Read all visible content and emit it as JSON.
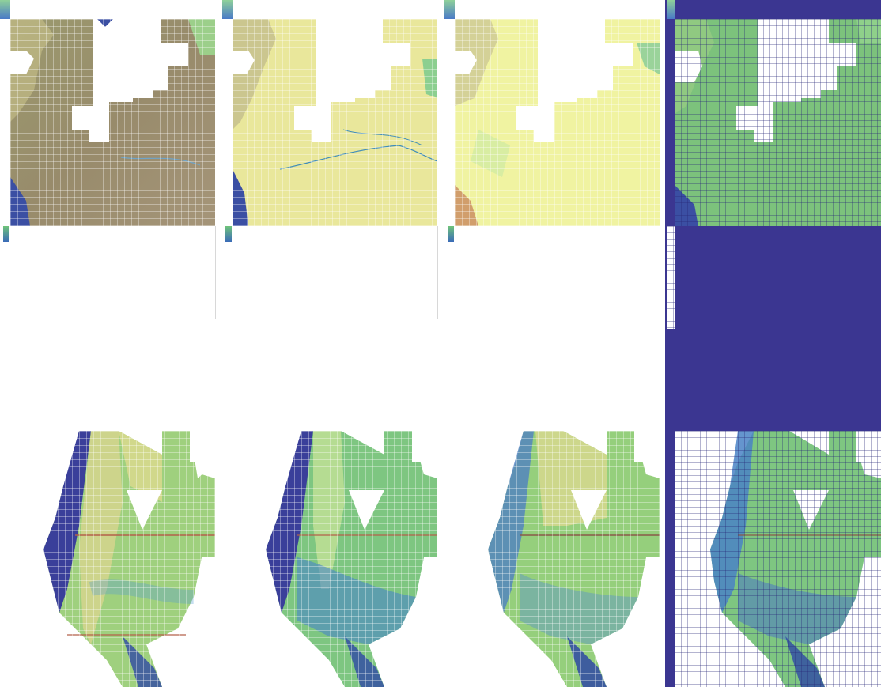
{
  "colors": {
    "navy": "#3b3691",
    "green": "#6dc07a",
    "yellow": "#eef29c",
    "olive": "#9a8e6a",
    "blue": "#3a6bb8",
    "white": "#ffffff"
  },
  "panels": [
    {
      "row": 1,
      "col": 1,
      "palette": "olive"
    },
    {
      "row": 1,
      "col": 2,
      "palette": "pale-yellow"
    },
    {
      "row": 1,
      "col": 3,
      "palette": "yellow"
    },
    {
      "row": 1,
      "col": 4,
      "palette": "green-grid"
    },
    {
      "row": 2,
      "col": 1,
      "palette": "green-yellow"
    },
    {
      "row": 2,
      "col": 2,
      "palette": "green-blue"
    },
    {
      "row": 2,
      "col": 3,
      "palette": "green-yellow-blue"
    },
    {
      "row": 2,
      "col": 4,
      "palette": "green-blue-grid"
    }
  ]
}
